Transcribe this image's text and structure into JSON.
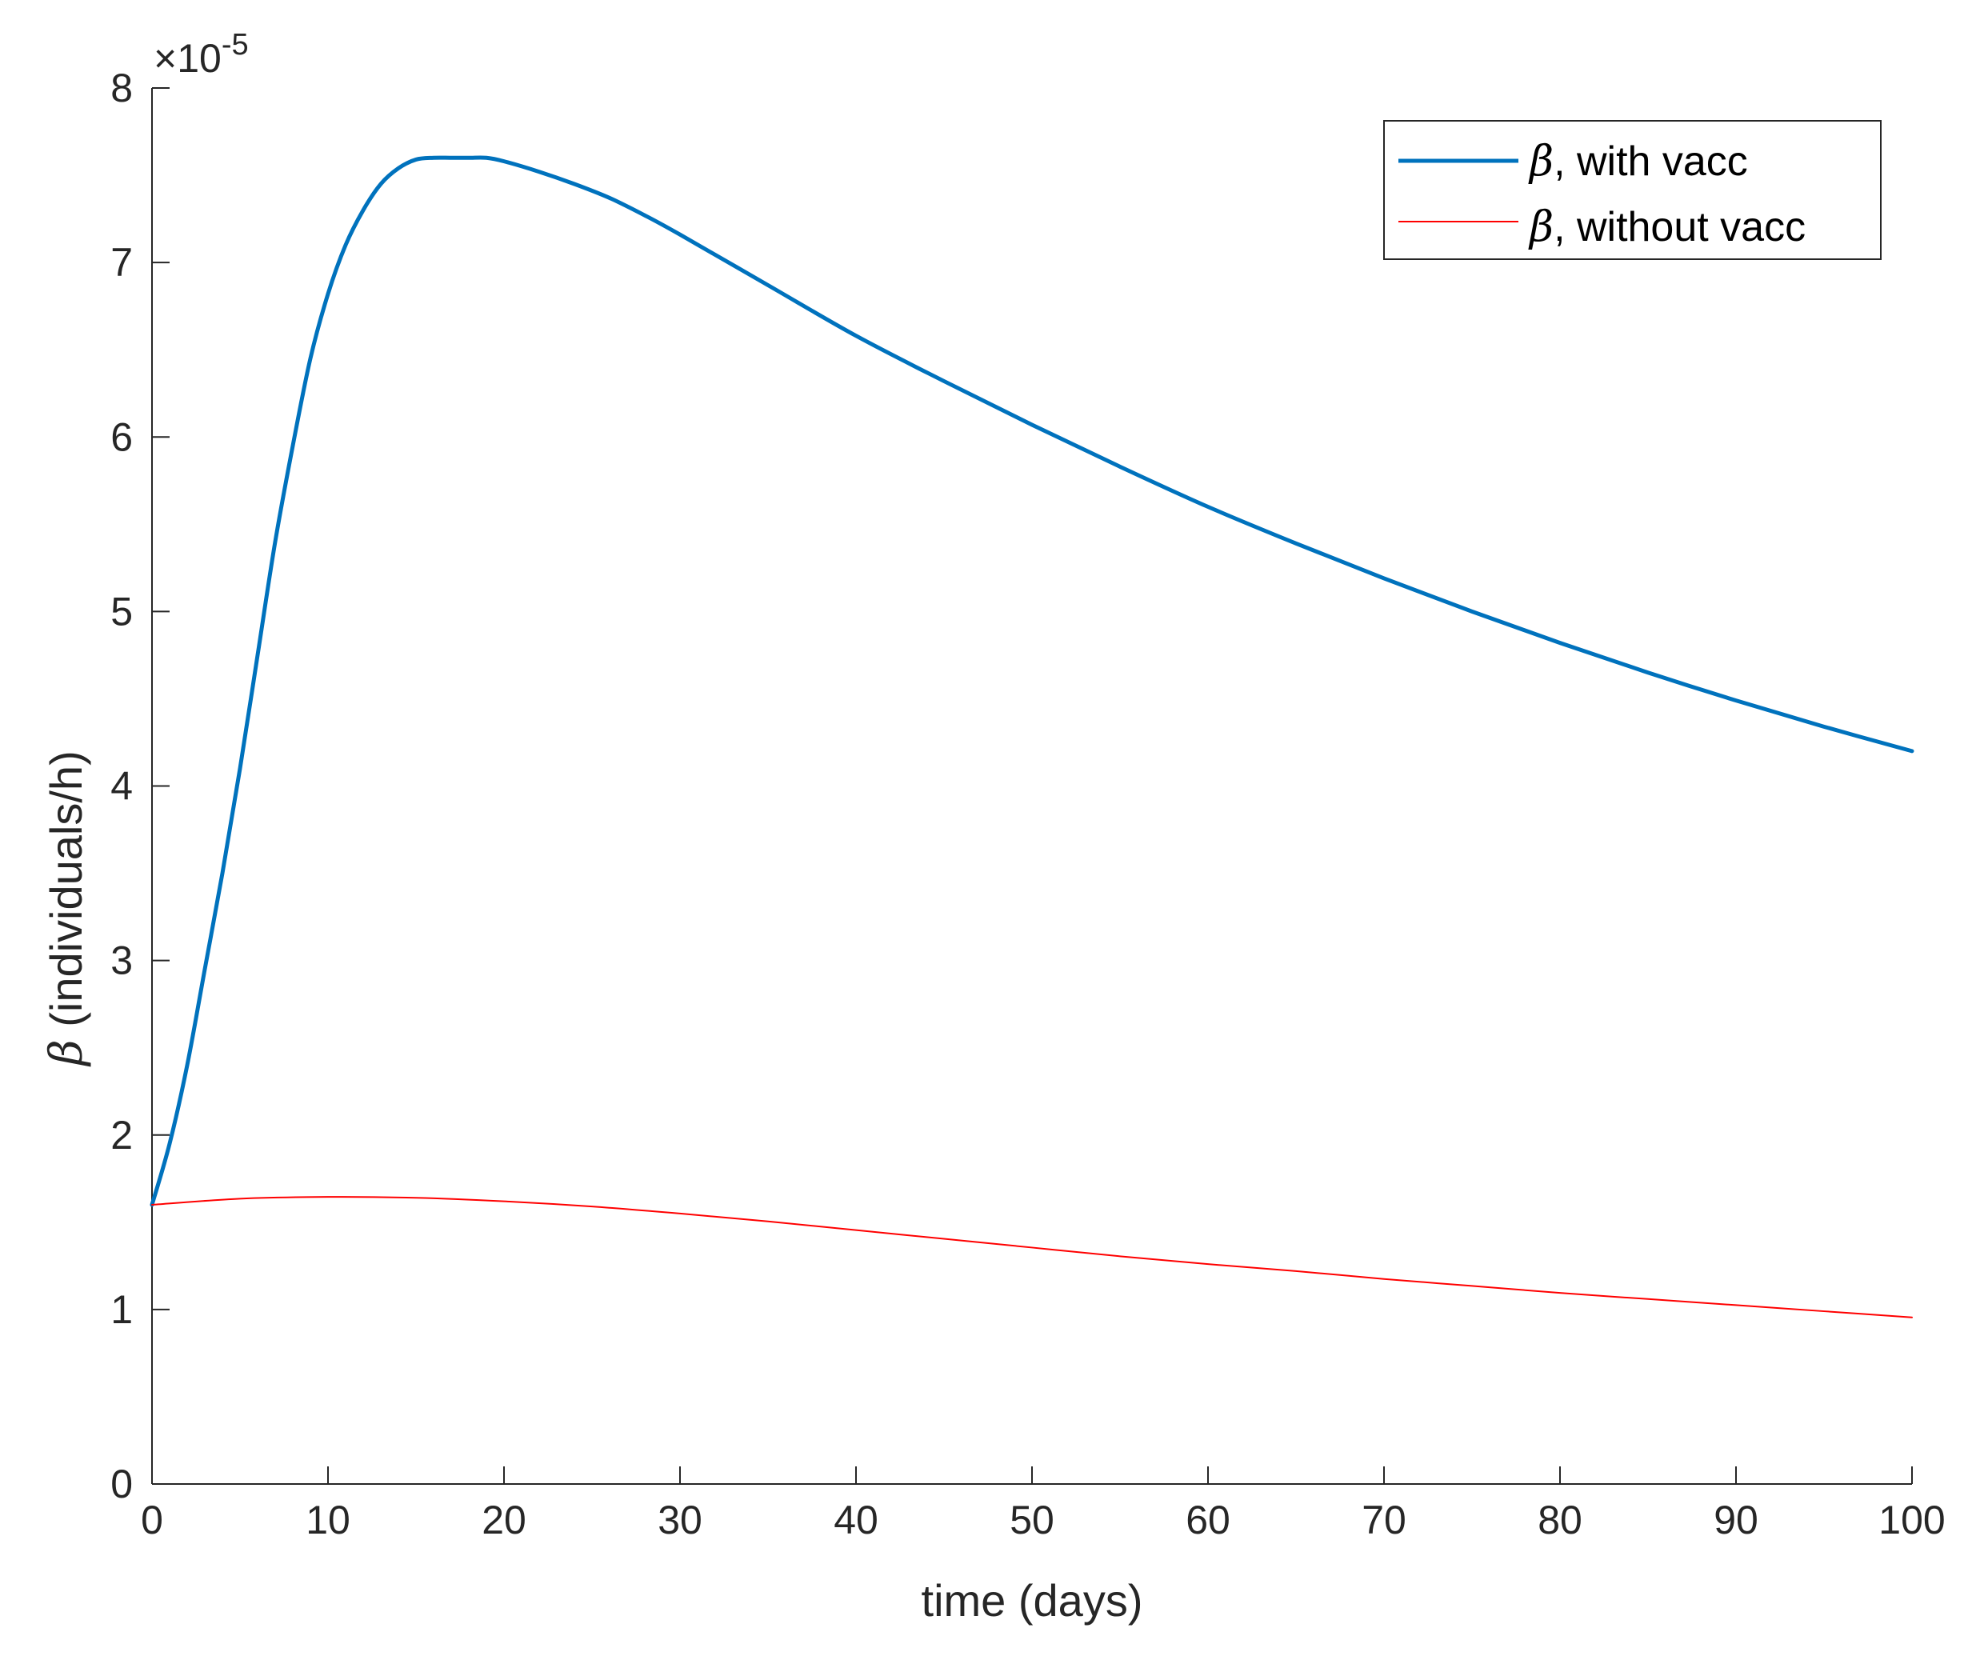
{
  "chart_data": {
    "type": "line",
    "xlabel": "time (days)",
    "ylabel_symbol": "β",
    "ylabel": " (individuals/h)",
    "y_exponent_prefix": "×10",
    "y_exponent": "-5",
    "xlim": [
      0,
      100
    ],
    "ylim": [
      0,
      8
    ],
    "x_ticks": [
      "0",
      "10",
      "20",
      "30",
      "40",
      "50",
      "60",
      "70",
      "80",
      "90",
      "100"
    ],
    "y_ticks": [
      "0",
      "1",
      "2",
      "3",
      "4",
      "5",
      "6",
      "7",
      "8"
    ],
    "grid": false,
    "legend_position": "top-right",
    "series": [
      {
        "name_symbol": "β",
        "name": ", with vacc",
        "color": "#0072bd",
        "x": [
          0,
          1,
          2,
          3,
          4,
          5,
          6,
          7,
          8,
          9,
          10,
          11,
          12,
          13,
          14,
          15,
          16,
          17,
          18,
          19,
          20,
          22,
          24,
          26,
          28,
          30,
          35,
          40,
          45,
          50,
          55,
          60,
          65,
          70,
          75,
          80,
          85,
          90,
          95,
          100
        ],
        "values": [
          1.6,
          1.95,
          2.4,
          2.95,
          3.5,
          4.1,
          4.75,
          5.4,
          5.95,
          6.45,
          6.82,
          7.1,
          7.3,
          7.45,
          7.54,
          7.59,
          7.6,
          7.6,
          7.6,
          7.6,
          7.58,
          7.52,
          7.45,
          7.37,
          7.27,
          7.16,
          6.87,
          6.58,
          6.32,
          6.07,
          5.83,
          5.6,
          5.39,
          5.19,
          5.0,
          4.82,
          4.65,
          4.49,
          4.34,
          4.2
        ]
      },
      {
        "name_symbol": "β",
        "name": ", without vacc",
        "color": "#ff0000",
        "x": [
          0,
          5,
          10,
          15,
          20,
          25,
          30,
          35,
          40,
          45,
          50,
          55,
          60,
          65,
          70,
          75,
          80,
          85,
          90,
          95,
          100
        ],
        "values": [
          1.6,
          1.635,
          1.645,
          1.64,
          1.62,
          1.59,
          1.55,
          1.505,
          1.455,
          1.405,
          1.355,
          1.305,
          1.26,
          1.22,
          1.175,
          1.135,
          1.095,
          1.06,
          1.025,
          0.99,
          0.955
        ]
      }
    ]
  }
}
